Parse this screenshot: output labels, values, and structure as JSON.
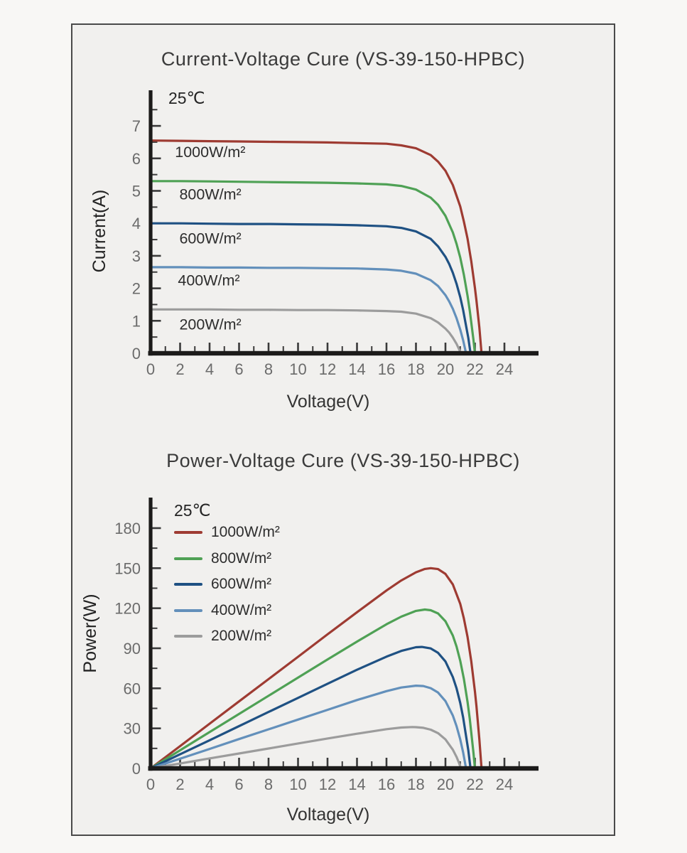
{
  "colors": {
    "axis": "#1c1b1a",
    "tick": "#3a3a3a",
    "tick_label": "#6b6b6b",
    "curve_label": "#2d2d2d",
    "frame_border": "#4a4a4a",
    "frame_bg": "#f1f0ee",
    "page_bg": "#f8f7f5"
  },
  "chart_data": [
    {
      "type": "line",
      "title": "Current-Voltage Cure (VS-39-150-HPBC)",
      "annotation": "25℃",
      "xlabel": "Voltage(V)",
      "ylabel": "Current(A)",
      "xlim": [
        0,
        26.3
      ],
      "ylim": [
        0,
        8.1
      ],
      "x_ticks": [
        0,
        2,
        4,
        6,
        8,
        10,
        12,
        14,
        16,
        18,
        20,
        22,
        24
      ],
      "x_minor_ticks": [
        1,
        3,
        5,
        7,
        9,
        11,
        13,
        15,
        17,
        19,
        21,
        23,
        25
      ],
      "y_ticks": [
        0,
        1,
        2,
        3,
        4,
        5,
        6,
        7
      ],
      "y_minor_ticks": [
        0.5,
        1.5,
        2.5,
        3.5,
        4.5,
        5.5,
        6.5,
        7.5
      ],
      "legend_position": "inline",
      "grid": false,
      "series": [
        {
          "id": "1000wm2",
          "name": "1000W/m²",
          "color": "#9e3b32",
          "label_at": [
            1.65,
            6.2
          ],
          "points": [
            [
              0,
              6.55
            ],
            [
              2,
              6.54
            ],
            [
              4,
              6.53
            ],
            [
              6,
              6.52
            ],
            [
              8,
              6.51
            ],
            [
              10,
              6.5
            ],
            [
              12,
              6.49
            ],
            [
              14,
              6.47
            ],
            [
              16,
              6.45
            ],
            [
              17,
              6.4
            ],
            [
              18,
              6.31
            ],
            [
              19,
              6.1
            ],
            [
              19.5,
              5.9
            ],
            [
              20,
              5.62
            ],
            [
              20.5,
              5.18
            ],
            [
              21,
              4.52
            ],
            [
              21.25,
              4.06
            ],
            [
              21.5,
              3.53
            ],
            [
              21.75,
              2.84
            ],
            [
              22,
              2.01
            ],
            [
              22.1,
              1.63
            ],
            [
              22.3,
              0.8
            ],
            [
              22.45,
              0
            ]
          ]
        },
        {
          "id": "800wm2",
          "name": "800W/m²",
          "color": "#4fa155",
          "label_at": [
            1.95,
            4.9
          ],
          "points": [
            [
              0,
              5.3
            ],
            [
              2,
              5.3
            ],
            [
              4,
              5.29
            ],
            [
              6,
              5.28
            ],
            [
              8,
              5.27
            ],
            [
              10,
              5.26
            ],
            [
              12,
              5.25
            ],
            [
              14,
              5.23
            ],
            [
              16,
              5.2
            ],
            [
              17,
              5.15
            ],
            [
              18,
              5.04
            ],
            [
              19,
              4.79
            ],
            [
              19.5,
              4.57
            ],
            [
              20,
              4.23
            ],
            [
              20.5,
              3.72
            ],
            [
              20.75,
              3.37
            ],
            [
              21,
              2.95
            ],
            [
              21.25,
              2.42
            ],
            [
              21.5,
              1.77
            ],
            [
              21.65,
              1.32
            ],
            [
              21.9,
              0.42
            ],
            [
              22,
              0
            ]
          ]
        },
        {
          "id": "600wm2",
          "name": "600W/m²",
          "color": "#1f5183",
          "label_at": [
            1.95,
            3.55
          ],
          "points": [
            [
              0,
              4.0
            ],
            [
              2,
              4.0
            ],
            [
              4,
              3.99
            ],
            [
              6,
              3.98
            ],
            [
              8,
              3.98
            ],
            [
              10,
              3.97
            ],
            [
              12,
              3.96
            ],
            [
              14,
              3.94
            ],
            [
              16,
              3.91
            ],
            [
              17,
              3.86
            ],
            [
              18,
              3.75
            ],
            [
              19,
              3.52
            ],
            [
              19.5,
              3.29
            ],
            [
              20,
              2.97
            ],
            [
              20.25,
              2.75
            ],
            [
              20.5,
              2.48
            ],
            [
              20.75,
              2.14
            ],
            [
              21,
              1.73
            ],
            [
              21.2,
              1.33
            ],
            [
              21.55,
              0.47
            ],
            [
              21.7,
              0
            ]
          ]
        },
        {
          "id": "400wm2",
          "name": "400W/m²",
          "color": "#6390bb",
          "label_at": [
            1.85,
            2.25
          ],
          "points": [
            [
              0,
              2.65
            ],
            [
              2,
              2.65
            ],
            [
              4,
              2.64
            ],
            [
              6,
              2.64
            ],
            [
              8,
              2.63
            ],
            [
              10,
              2.63
            ],
            [
              12,
              2.62
            ],
            [
              14,
              2.61
            ],
            [
              16,
              2.58
            ],
            [
              17,
              2.54
            ],
            [
              18,
              2.45
            ],
            [
              19,
              2.25
            ],
            [
              19.5,
              2.07
            ],
            [
              20,
              1.79
            ],
            [
              20.25,
              1.6
            ],
            [
              20.5,
              1.37
            ],
            [
              20.75,
              1.08
            ],
            [
              21,
              0.73
            ],
            [
              21.2,
              0.4
            ],
            [
              21.4,
              0
            ]
          ]
        },
        {
          "id": "200wm2",
          "name": "200W/m²",
          "color": "#9c9c9c",
          "label_at": [
            1.95,
            0.9
          ],
          "points": [
            [
              0,
              1.35
            ],
            [
              2,
              1.35
            ],
            [
              4,
              1.35
            ],
            [
              6,
              1.34
            ],
            [
              8,
              1.34
            ],
            [
              10,
              1.33
            ],
            [
              12,
              1.33
            ],
            [
              14,
              1.32
            ],
            [
              16,
              1.3
            ],
            [
              17,
              1.28
            ],
            [
              18,
              1.22
            ],
            [
              19,
              1.08
            ],
            [
              19.5,
              0.95
            ],
            [
              20,
              0.76
            ],
            [
              20.25,
              0.64
            ],
            [
              20.5,
              0.48
            ],
            [
              20.75,
              0.29
            ],
            [
              21,
              0.05
            ],
            [
              21.05,
              0
            ]
          ]
        }
      ]
    },
    {
      "type": "line",
      "title": "Power-Voltage Cure (VS-39-150-HPBC)",
      "annotation": "25℃",
      "xlabel": "Voltage(V)",
      "ylabel": "Power(W)",
      "xlim": [
        0,
        26.3
      ],
      "ylim": [
        0,
        203
      ],
      "x_ticks": [
        0,
        2,
        4,
        6,
        8,
        10,
        12,
        14,
        16,
        18,
        20,
        22,
        24
      ],
      "x_minor_ticks": [
        1,
        3,
        5,
        7,
        9,
        11,
        13,
        15,
        17,
        19,
        21,
        23,
        25
      ],
      "y_ticks": [
        0,
        30,
        60,
        90,
        120,
        150,
        180
      ],
      "y_minor_ticks": [
        15,
        45,
        75,
        105,
        135,
        165,
        195
      ],
      "legend_position": "top-left",
      "grid": false,
      "series": [
        {
          "id": "1000wm2",
          "name": "1000W/m²",
          "color": "#9e3b32",
          "points": [
            [
              0,
              0
            ],
            [
              2,
              16.7
            ],
            [
              4,
              33.5
            ],
            [
              6,
              50.2
            ],
            [
              8,
              66.9
            ],
            [
              10,
              83.6
            ],
            [
              12,
              100.4
            ],
            [
              14,
              117.0
            ],
            [
              16,
              133.3
            ],
            [
              17,
              140.8
            ],
            [
              18,
              146.9
            ],
            [
              18.6,
              149.4
            ],
            [
              19,
              150.0
            ],
            [
              19.5,
              149.3
            ],
            [
              20,
              145.7
            ],
            [
              20.5,
              137.8
            ],
            [
              21,
              123.3
            ],
            [
              21.25,
              112.4
            ],
            [
              21.5,
              98.5
            ],
            [
              21.75,
              80.4
            ],
            [
              22,
              57.6
            ],
            [
              22.1,
              46.8
            ],
            [
              22.3,
              22.0
            ],
            [
              22.45,
              0
            ]
          ]
        },
        {
          "id": "800wm2",
          "name": "800W/m²",
          "color": "#4fa155",
          "points": [
            [
              0,
              0
            ],
            [
              2,
              13.6
            ],
            [
              4,
              27.2
            ],
            [
              6,
              40.8
            ],
            [
              8,
              54.4
            ],
            [
              10,
              68.0
            ],
            [
              12,
              81.6
            ],
            [
              14,
              95.0
            ],
            [
              16,
              108.0
            ],
            [
              17,
              113.7
            ],
            [
              18,
              118.0
            ],
            [
              18.6,
              119.0
            ],
            [
              19,
              118.5
            ],
            [
              19.5,
              116.1
            ],
            [
              20,
              110.2
            ],
            [
              20.5,
              99.5
            ],
            [
              20.75,
              91.3
            ],
            [
              21,
              80.6
            ],
            [
              21.25,
              67.2
            ],
            [
              21.5,
              49.8
            ],
            [
              21.65,
              37.2
            ],
            [
              21.9,
              11.9
            ],
            [
              22,
              0
            ]
          ]
        },
        {
          "id": "600wm2",
          "name": "600W/m²",
          "color": "#1f5183",
          "points": [
            [
              0,
              0
            ],
            [
              2,
              10.6
            ],
            [
              4,
              21.1
            ],
            [
              6,
              31.7
            ],
            [
              8,
              42.3
            ],
            [
              10,
              52.8
            ],
            [
              12,
              63.4
            ],
            [
              14,
              73.9
            ],
            [
              16,
              83.7
            ],
            [
              17,
              88.0
            ],
            [
              18,
              90.8
            ],
            [
              18.4,
              91.0
            ],
            [
              19,
              89.9
            ],
            [
              19.5,
              86.6
            ],
            [
              20,
              80.1
            ],
            [
              20.5,
              68.4
            ],
            [
              20.75,
              60.0
            ],
            [
              21,
              49.1
            ],
            [
              21.2,
              38.2
            ],
            [
              21.55,
              13.4
            ],
            [
              21.7,
              0
            ]
          ]
        },
        {
          "id": "400wm2",
          "name": "400W/m²",
          "color": "#6390bb",
          "points": [
            [
              0,
              0
            ],
            [
              2,
              7.3
            ],
            [
              4,
              14.6
            ],
            [
              6,
              22.0
            ],
            [
              8,
              29.3
            ],
            [
              10,
              36.6
            ],
            [
              12,
              43.9
            ],
            [
              14,
              51.2
            ],
            [
              16,
              57.9
            ],
            [
              17,
              60.6
            ],
            [
              18,
              62.0
            ],
            [
              18.5,
              61.7
            ],
            [
              19,
              60.1
            ],
            [
              19.5,
              56.8
            ],
            [
              20,
              50.4
            ],
            [
              20.5,
              39.6
            ],
            [
              20.75,
              31.7
            ],
            [
              21,
              21.8
            ],
            [
              21.2,
              12.0
            ],
            [
              21.4,
              0
            ]
          ]
        },
        {
          "id": "200wm2",
          "name": "200W/m²",
          "color": "#9c9c9c",
          "points": [
            [
              0,
              0
            ],
            [
              2,
              3.7
            ],
            [
              4,
              7.5
            ],
            [
              6,
              11.2
            ],
            [
              8,
              14.9
            ],
            [
              10,
              18.7
            ],
            [
              12,
              22.4
            ],
            [
              14,
              26.0
            ],
            [
              16,
              29.4
            ],
            [
              17,
              30.6
            ],
            [
              17.75,
              31.0
            ],
            [
              18,
              30.9
            ],
            [
              18.5,
              30.4
            ],
            [
              19,
              29.0
            ],
            [
              19.5,
              26.4
            ],
            [
              20,
              21.7
            ],
            [
              20.5,
              14.0
            ],
            [
              20.75,
              8.6
            ],
            [
              20.9,
              4.7
            ],
            [
              21.05,
              0
            ]
          ]
        }
      ]
    }
  ]
}
